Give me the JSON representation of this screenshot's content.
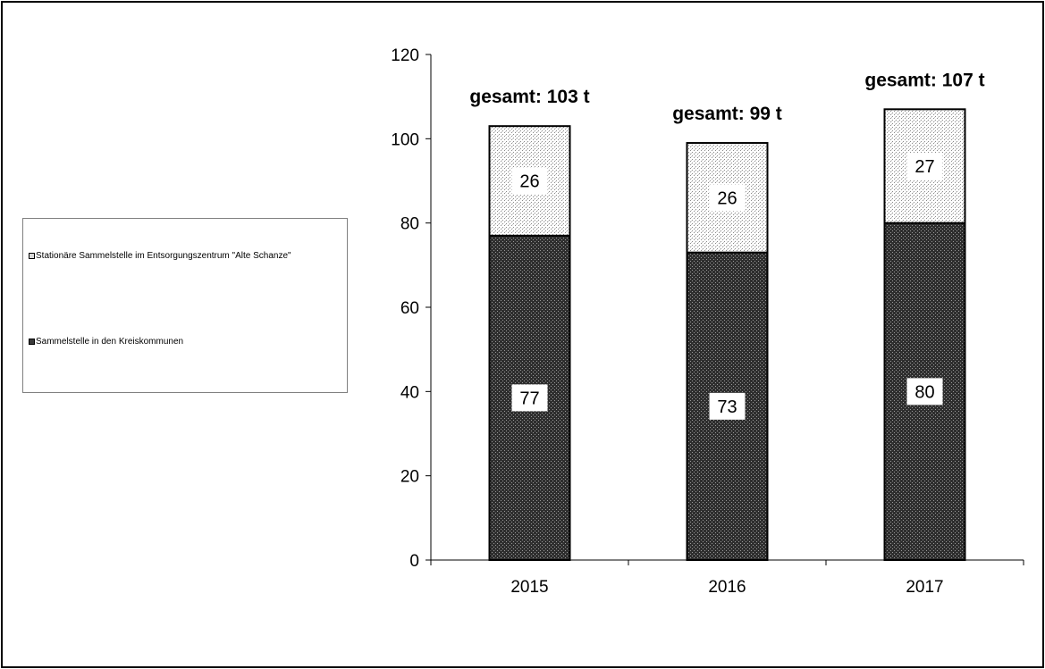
{
  "chart_data": {
    "type": "bar",
    "stacked": true,
    "title": "",
    "xlabel": "",
    "ylabel": "",
    "categories": [
      "2015",
      "2016",
      "2017"
    ],
    "ylim": [
      0,
      120
    ],
    "yticks": [
      "0",
      "20",
      "40",
      "60",
      "80",
      "100",
      "120"
    ],
    "grid": false,
    "legend_position": "left",
    "series": [
      {
        "name": "Sammelstelle in den Kreiskommunen",
        "values": [
          77,
          73,
          80
        ],
        "data_labels": [
          "77",
          "73",
          "80"
        ],
        "pattern": "dense-dotted",
        "color": "#3a3a3a"
      },
      {
        "name": "Stationäre Sammelstelle im Entsorgungszentrum \"Alte Schanze\"",
        "values": [
          26,
          26,
          27
        ],
        "data_labels": [
          "26",
          "26",
          "27"
        ],
        "pattern": "light-dotted",
        "color": "#d8d8d8"
      }
    ],
    "totals": [
      103,
      99,
      107
    ],
    "total_labels": [
      "gesamt: 103 t",
      "gesamt: 99 t",
      "gesamt: 107 t"
    ]
  },
  "legend": {
    "items": [
      {
        "label": "Stationäre Sammelstelle im Entsorgungszentrum \"Alte Schanze\"",
        "color": "#d8d8d8"
      },
      {
        "label": "Sammelstelle in den Kreiskommunen",
        "color": "#3a3a3a"
      }
    ]
  },
  "colors": {
    "frame": "#000000",
    "legend_border": "#808080",
    "bar_dark": "#3a3a3a",
    "bar_light": "#d8d8d8",
    "axis": "#000000"
  }
}
